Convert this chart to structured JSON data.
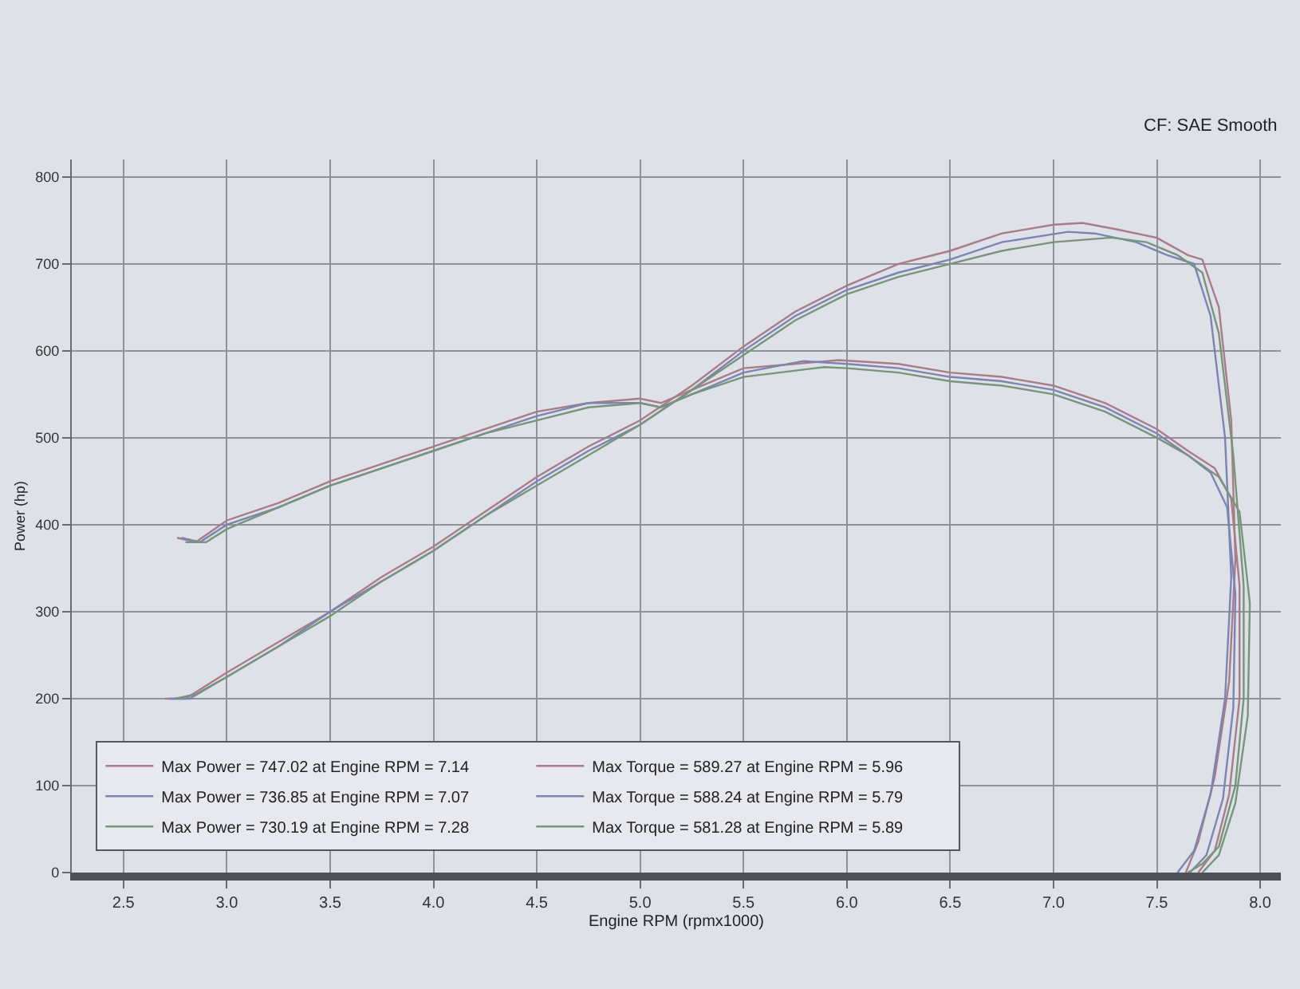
{
  "chart_data": {
    "type": "line",
    "xlabel": "Engine RPM (rpmx1000)",
    "ylabel": "Power (hp)",
    "annotations": [
      "CF: SAE Smooth"
    ],
    "xlim": [
      2.25,
      8.1
    ],
    "ylim": [
      0,
      820
    ],
    "xticks": [
      {
        "value": 2.5,
        "label": "2.5"
      },
      {
        "value": 3,
        "label": "3.0"
      },
      {
        "value": 3.5,
        "label": "3.5"
      },
      {
        "value": 4,
        "label": "4.0"
      },
      {
        "value": 4.5,
        "label": "4.5"
      },
      {
        "value": 5,
        "label": "5.0"
      },
      {
        "value": 5.5,
        "label": "5.5"
      },
      {
        "value": 6,
        "label": "6.0"
      },
      {
        "value": 6.5,
        "label": "6.5"
      },
      {
        "value": 7,
        "label": "7.0"
      },
      {
        "value": 7.5,
        "label": "7.5"
      },
      {
        "value": 8,
        "label": "8.0"
      }
    ],
    "yticks": [
      0,
      100,
      200,
      300,
      400,
      500,
      600,
      700,
      800
    ],
    "grid": true,
    "legend": "bottom left",
    "series": [
      {
        "name": "Max Power = 747.02 at Engine RPM = 7.14",
        "color": "#a87c88",
        "x": [
          2.7,
          2.8,
          3.0,
          3.25,
          3.5,
          3.75,
          4.0,
          4.25,
          4.5,
          4.75,
          5.0,
          5.25,
          5.5,
          5.75,
          6.0,
          6.25,
          6.5,
          6.75,
          7.0,
          7.14,
          7.3,
          7.5,
          7.65,
          7.72,
          7.8,
          7.86,
          7.88,
          7.85,
          7.78,
          7.7,
          7.64
        ],
        "values": [
          200,
          200,
          230,
          265,
          300,
          340,
          375,
          415,
          455,
          490,
          520,
          560,
          605,
          645,
          675,
          700,
          715,
          735,
          745,
          747.02,
          740,
          730,
          710,
          705,
          650,
          520,
          360,
          220,
          110,
          35,
          0
        ]
      },
      {
        "name": "Max Torque = 589.27 at Engine RPM = 5.96",
        "color": "#a87c88",
        "x": [
          2.76,
          2.85,
          3.0,
          3.25,
          3.5,
          3.75,
          4.0,
          4.25,
          4.5,
          4.75,
          5.0,
          5.1,
          5.25,
          5.5,
          5.75,
          5.96,
          6.25,
          6.5,
          6.75,
          7.0,
          7.25,
          7.5,
          7.65,
          7.78,
          7.86,
          7.9,
          7.9,
          7.85,
          7.78,
          7.7
        ],
        "values": [
          385,
          380,
          405,
          425,
          450,
          470,
          490,
          510,
          530,
          540,
          545,
          540,
          555,
          580,
          585,
          589.27,
          585,
          575,
          570,
          560,
          540,
          510,
          485,
          465,
          430,
          330,
          200,
          90,
          25,
          0
        ]
      },
      {
        "name": "Max Power = 736.85 at Engine RPM = 7.07",
        "color": "#7c84b0",
        "x": [
          2.72,
          2.82,
          3.0,
          3.25,
          3.5,
          3.75,
          4.0,
          4.25,
          4.5,
          4.75,
          5.0,
          5.25,
          5.5,
          5.75,
          6.0,
          6.25,
          6.5,
          6.75,
          7.07,
          7.2,
          7.4,
          7.55,
          7.68,
          7.76,
          7.83,
          7.86,
          7.83,
          7.76,
          7.68,
          7.6
        ],
        "values": [
          200,
          200,
          225,
          260,
          300,
          335,
          370,
          410,
          450,
          485,
          515,
          555,
          600,
          640,
          670,
          690,
          705,
          725,
          736.85,
          735,
          725,
          710,
          700,
          640,
          500,
          340,
          200,
          90,
          25,
          0
        ]
      },
      {
        "name": "Max Torque = 588.24 at Engine RPM = 5.79",
        "color": "#7c84b0",
        "x": [
          2.78,
          2.87,
          3.0,
          3.25,
          3.5,
          3.75,
          4.0,
          4.25,
          4.5,
          4.75,
          5.0,
          5.1,
          5.25,
          5.5,
          5.79,
          6.0,
          6.25,
          6.5,
          6.75,
          7.0,
          7.25,
          7.5,
          7.65,
          7.76,
          7.84,
          7.88,
          7.87,
          7.82,
          7.74,
          7.66
        ],
        "values": [
          385,
          380,
          400,
          420,
          445,
          465,
          485,
          505,
          525,
          540,
          540,
          535,
          550,
          575,
          588.24,
          585,
          580,
          570,
          565,
          555,
          535,
          505,
          480,
          460,
          420,
          320,
          190,
          85,
          20,
          0
        ]
      },
      {
        "name": "Max Power = 730.19 at Engine RPM = 7.28",
        "color": "#78957c",
        "x": [
          2.75,
          2.85,
          3.0,
          3.25,
          3.5,
          3.75,
          4.0,
          4.25,
          4.5,
          4.75,
          5.0,
          5.25,
          5.5,
          5.75,
          6.0,
          6.25,
          6.5,
          6.75,
          7.0,
          7.28,
          7.45,
          7.6,
          7.72,
          7.8,
          7.87,
          7.92,
          7.92,
          7.88,
          7.8,
          7.72,
          7.65
        ],
        "values": [
          200,
          205,
          225,
          260,
          295,
          335,
          370,
          410,
          445,
          480,
          515,
          555,
          595,
          635,
          665,
          685,
          700,
          715,
          725,
          730.19,
          725,
          710,
          690,
          620,
          480,
          330,
          200,
          100,
          30,
          10,
          0
        ]
      },
      {
        "name": "Max Torque = 581.28 at Engine RPM = 5.89",
        "color": "#78957c",
        "x": [
          2.8,
          2.9,
          3.0,
          3.25,
          3.5,
          3.75,
          4.0,
          4.25,
          4.5,
          4.75,
          5.0,
          5.1,
          5.25,
          5.5,
          5.89,
          6.0,
          6.25,
          6.5,
          6.75,
          7.0,
          7.25,
          7.5,
          7.65,
          7.8,
          7.9,
          7.95,
          7.94,
          7.88,
          7.8,
          7.72
        ],
        "values": [
          380,
          380,
          395,
          420,
          445,
          465,
          485,
          505,
          520,
          535,
          540,
          535,
          550,
          570,
          581.28,
          580,
          575,
          565,
          560,
          550,
          530,
          500,
          480,
          455,
          415,
          310,
          180,
          80,
          20,
          0
        ]
      }
    ]
  }
}
